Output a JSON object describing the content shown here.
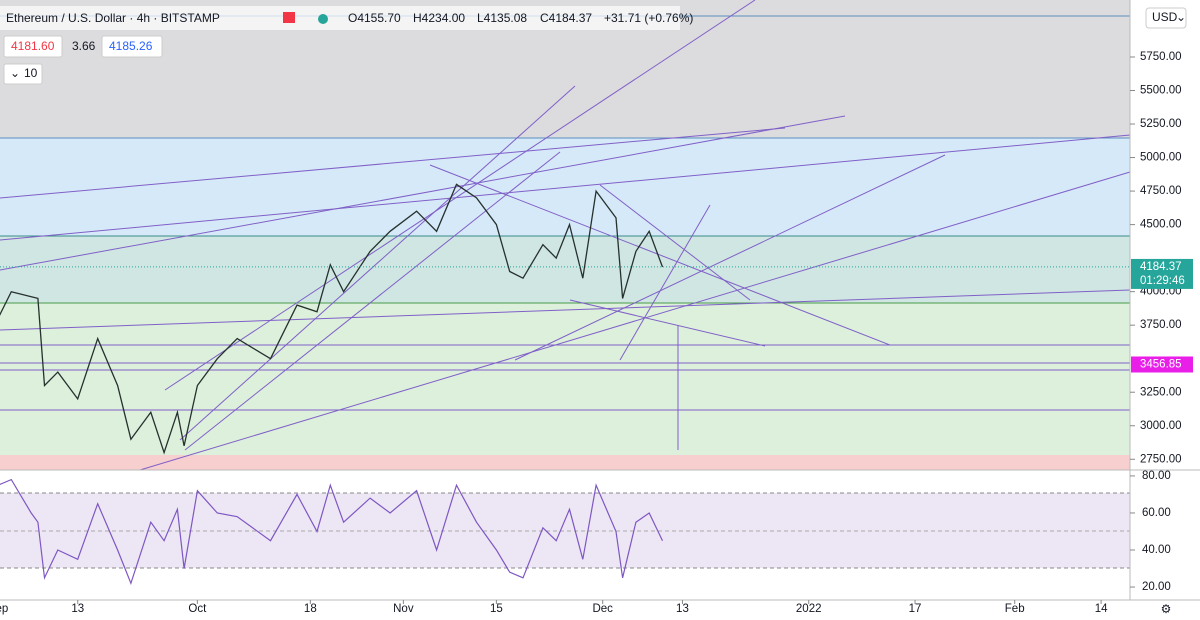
{
  "header": {
    "symbol": "Ethereum / U.S. Dollar · 4h · BITSTAMP",
    "open": "O4155.70",
    "high": "H4234.00",
    "low": "L4135.08",
    "close": "C4184.37",
    "change": "+31.71 (+0.76%)",
    "bid": "4181.60",
    "spread": "3.66",
    "ask": "4185.26",
    "indicators": "10",
    "currency": "USD"
  },
  "price": {
    "ylim": [
      2670,
      6175
    ],
    "yticks": [
      {
        "value": 5750,
        "label": "5750.00"
      },
      {
        "value": 5500,
        "label": "5500.00"
      },
      {
        "value": 5250,
        "label": "5250.00"
      },
      {
        "value": 5000,
        "label": "5000.00"
      },
      {
        "value": 4750,
        "label": "4750.00"
      },
      {
        "value": 4500,
        "label": "4500.00"
      },
      {
        "value": 4000,
        "label": "4000.00"
      },
      {
        "value": 3750,
        "label": "3750.00"
      },
      {
        "value": 3250,
        "label": "3250.00"
      },
      {
        "value": 3000,
        "label": "3000.00"
      },
      {
        "value": 2750,
        "label": "2750.00"
      }
    ],
    "days": [
      0,
      2,
      6,
      7,
      9,
      12,
      15,
      18,
      20,
      23,
      25,
      27,
      28,
      30,
      33,
      36,
      41,
      45,
      48,
      50,
      52,
      56,
      59,
      63,
      66,
      69,
      72,
      75,
      77,
      79,
      82,
      84,
      86,
      88,
      90,
      93,
      94,
      96,
      98,
      100
    ],
    "close": [
      3800,
      4000,
      3950,
      3300,
      3400,
      3200,
      3650,
      3300,
      2900,
      3100,
      2800,
      3100,
      2850,
      3300,
      3500,
      3650,
      3500,
      3900,
      3850,
      4200,
      4000,
      4300,
      4450,
      4600,
      4450,
      4800,
      4700,
      4500,
      4150,
      4100,
      4350,
      4250,
      4500,
      4100,
      4750,
      4550,
      3950,
      4300,
      4450,
      4184
    ],
    "last_price": "4184.37",
    "countdown": "01:29:46",
    "alert_price": "3456.85",
    "alert_value": 3456.85,
    "last_value": 4184.37
  },
  "rsi": {
    "ylim": [
      13,
      83.2
    ],
    "yticks": [
      {
        "value": 80,
        "label": "80.00"
      },
      {
        "value": 60,
        "label": "60.00"
      },
      {
        "value": 40,
        "label": "40.00"
      },
      {
        "value": 20,
        "label": "20.00"
      }
    ],
    "days": [
      0,
      2,
      5,
      6,
      7,
      9,
      12,
      15,
      18,
      20,
      23,
      25,
      27,
      28,
      30,
      33,
      36,
      41,
      45,
      48,
      50,
      52,
      56,
      59,
      63,
      66,
      69,
      72,
      75,
      77,
      79,
      82,
      84,
      86,
      88,
      90,
      93,
      94,
      96,
      98,
      100
    ],
    "values": [
      75,
      78,
      60,
      55,
      25,
      40,
      35,
      65,
      40,
      22,
      55,
      45,
      62,
      30,
      72,
      60,
      58,
      45,
      70,
      50,
      75,
      55,
      68,
      60,
      72,
      40,
      75,
      55,
      40,
      28,
      25,
      52,
      45,
      62,
      35,
      75,
      50,
      25,
      55,
      60,
      45
    ]
  },
  "xaxis": {
    "xlim": [
      0.3,
      170.35
    ],
    "xticks": [
      {
        "value": 0,
        "label": "Sep"
      },
      {
        "value": 12,
        "label": "13"
      },
      {
        "value": 30,
        "label": "Oct"
      },
      {
        "value": 47,
        "label": "18"
      },
      {
        "value": 61,
        "label": "Nov"
      },
      {
        "value": 75,
        "label": "15"
      },
      {
        "value": 91,
        "label": "Dec"
      },
      {
        "value": 103,
        "label": "13"
      },
      {
        "value": 122,
        "label": "2022"
      },
      {
        "value": 138,
        "label": "17"
      },
      {
        "value": 153,
        "label": "Feb"
      },
      {
        "value": 166,
        "label": "14"
      }
    ]
  }
}
